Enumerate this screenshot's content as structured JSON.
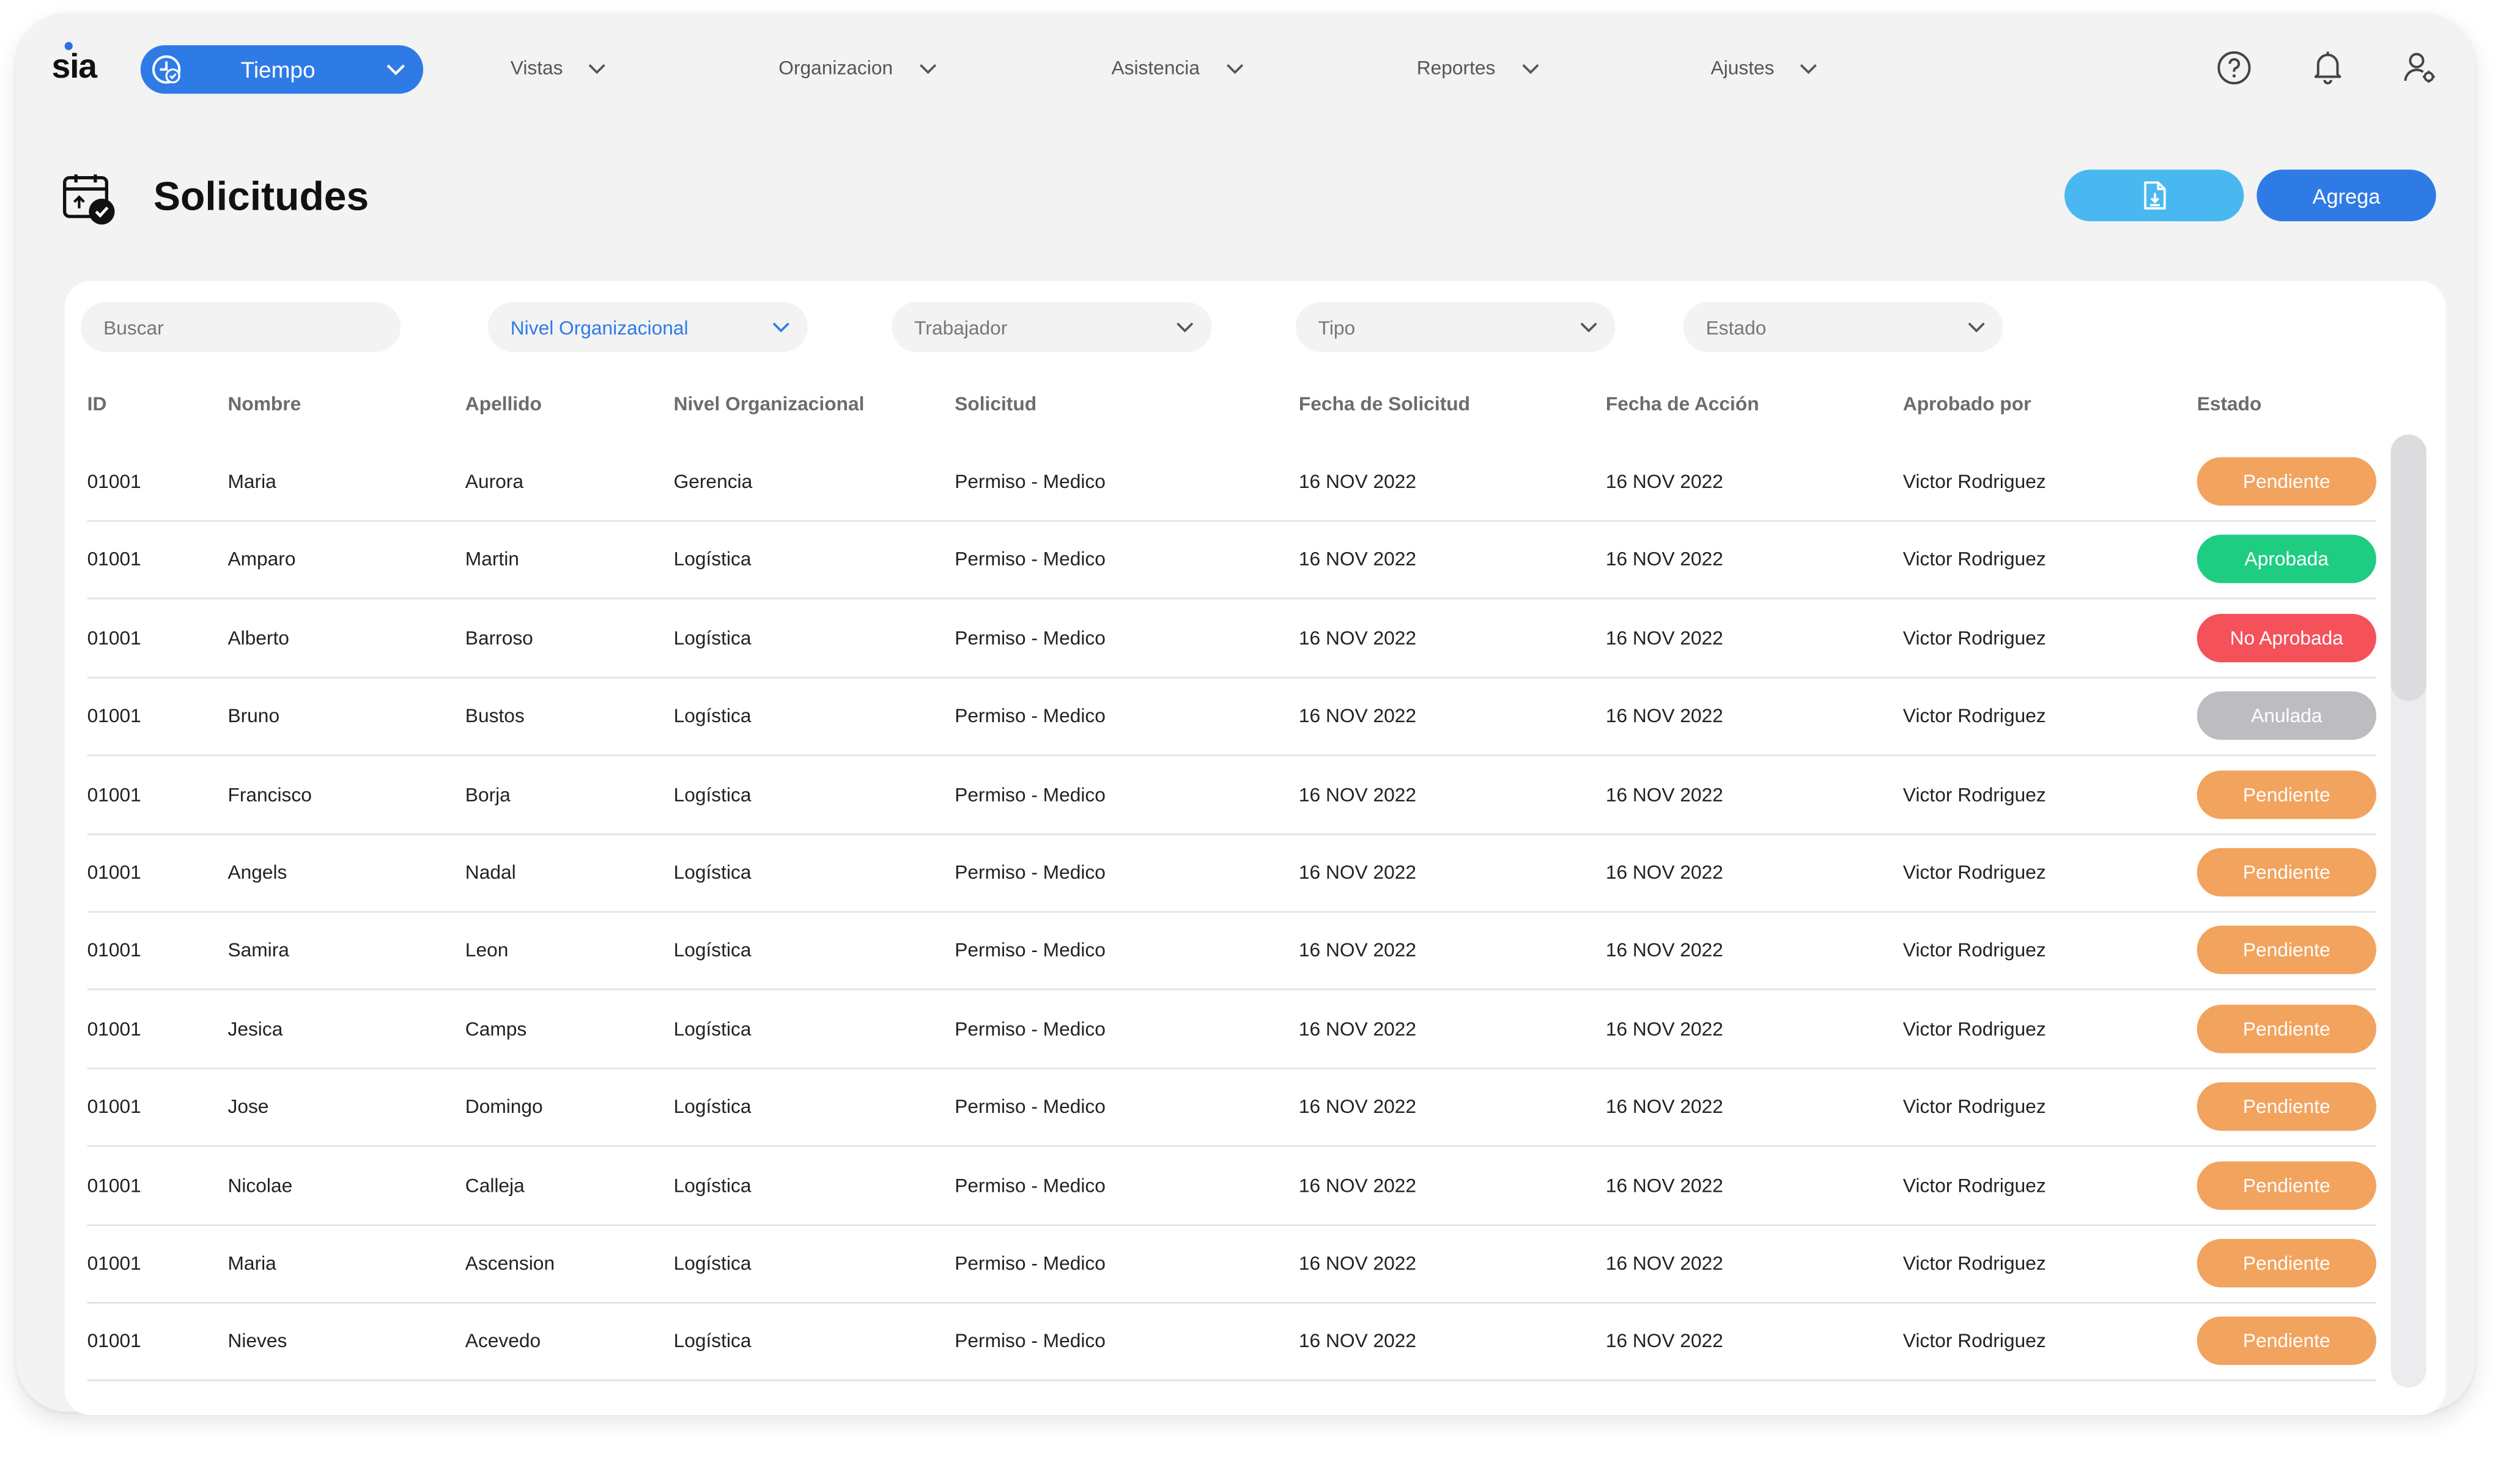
{
  "app": {
    "logo_text": "sia"
  },
  "nav": {
    "module_label": "Tiempo",
    "items": [
      {
        "label": "Vistas"
      },
      {
        "label": "Organizacion"
      },
      {
        "label": "Asistencia"
      },
      {
        "label": "Reportes"
      },
      {
        "label": "Ajustes"
      }
    ]
  },
  "icons": {
    "module": "clock-check-icon",
    "help": "help-circle-icon",
    "notifications": "bell-icon",
    "user": "user-settings-icon",
    "page": "calendar-check-icon",
    "export": "file-download-icon"
  },
  "page": {
    "title": "Solicitudes",
    "add_button": "Agrega"
  },
  "filters": {
    "search_placeholder": "Buscar",
    "nivel": "Nivel Organizacional",
    "trabajador": "Trabajador",
    "tipo": "Tipo",
    "estado": "Estado"
  },
  "table": {
    "columns": [
      "ID",
      "Nombre",
      "Apellido",
      "Nivel Organizacional",
      "Solicitud",
      "Fecha de Solicitud",
      "Fecha de Acción",
      "Aprobado por",
      "Estado"
    ],
    "rows": [
      {
        "id": "01001",
        "nombre": "Maria",
        "apellido": "Aurora",
        "nivel": "Gerencia",
        "solicitud": "Permiso - Medico",
        "fecha_solicitud": "16 NOV 2022",
        "fecha_accion": "16 NOV 2022",
        "aprobado_por": "Victor Rodriguez",
        "estado": "Pendiente"
      },
      {
        "id": "01001",
        "nombre": "Amparo",
        "apellido": "Martin",
        "nivel": "Logística",
        "solicitud": "Permiso - Medico",
        "fecha_solicitud": "16 NOV 2022",
        "fecha_accion": "16 NOV 2022",
        "aprobado_por": "Victor Rodriguez",
        "estado": "Aprobada"
      },
      {
        "id": "01001",
        "nombre": "Alberto",
        "apellido": "Barroso",
        "nivel": "Logística",
        "solicitud": "Permiso - Medico",
        "fecha_solicitud": "16 NOV 2022",
        "fecha_accion": "16 NOV 2022",
        "aprobado_por": "Victor Rodriguez",
        "estado": "No Aprobada"
      },
      {
        "id": "01001",
        "nombre": "Bruno",
        "apellido": "Bustos",
        "nivel": "Logística",
        "solicitud": "Permiso - Medico",
        "fecha_solicitud": "16 NOV 2022",
        "fecha_accion": "16 NOV 2022",
        "aprobado_por": "Victor Rodriguez",
        "estado": "Anulada"
      },
      {
        "id": "01001",
        "nombre": "Francisco",
        "apellido": "Borja",
        "nivel": "Logística",
        "solicitud": "Permiso - Medico",
        "fecha_solicitud": "16 NOV 2022",
        "fecha_accion": "16 NOV 2022",
        "aprobado_por": "Victor Rodriguez",
        "estado": "Pendiente"
      },
      {
        "id": "01001",
        "nombre": "Angels",
        "apellido": "Nadal",
        "nivel": "Logística",
        "solicitud": "Permiso - Medico",
        "fecha_solicitud": "16 NOV 2022",
        "fecha_accion": "16 NOV 2022",
        "aprobado_por": "Victor Rodriguez",
        "estado": "Pendiente"
      },
      {
        "id": "01001",
        "nombre": "Samira",
        "apellido": "Leon",
        "nivel": "Logística",
        "solicitud": "Permiso - Medico",
        "fecha_solicitud": "16 NOV 2022",
        "fecha_accion": "16 NOV 2022",
        "aprobado_por": "Victor Rodriguez",
        "estado": "Pendiente"
      },
      {
        "id": "01001",
        "nombre": "Jesica",
        "apellido": "Camps",
        "nivel": "Logística",
        "solicitud": "Permiso - Medico",
        "fecha_solicitud": "16 NOV 2022",
        "fecha_accion": "16 NOV 2022",
        "aprobado_por": "Victor Rodriguez",
        "estado": "Pendiente"
      },
      {
        "id": "01001",
        "nombre": "Jose",
        "apellido": "Domingo",
        "nivel": "Logística",
        "solicitud": "Permiso - Medico",
        "fecha_solicitud": "16 NOV 2022",
        "fecha_accion": "16 NOV 2022",
        "aprobado_por": "Victor Rodriguez",
        "estado": "Pendiente"
      },
      {
        "id": "01001",
        "nombre": "Nicolae",
        "apellido": "Calleja",
        "nivel": "Logística",
        "solicitud": "Permiso - Medico",
        "fecha_solicitud": "16 NOV 2022",
        "fecha_accion": "16 NOV 2022",
        "aprobado_por": "Victor Rodriguez",
        "estado": "Pendiente"
      },
      {
        "id": "01001",
        "nombre": "Maria",
        "apellido": "Ascension",
        "nivel": "Logística",
        "solicitud": "Permiso - Medico",
        "fecha_solicitud": "16 NOV 2022",
        "fecha_accion": "16 NOV 2022",
        "aprobado_por": "Victor Rodriguez",
        "estado": "Pendiente"
      },
      {
        "id": "01001",
        "nombre": "Nieves",
        "apellido": "Acevedo",
        "nivel": "Logística",
        "solicitud": "Permiso - Medico",
        "fecha_solicitud": "16 NOV 2022",
        "fecha_accion": "16 NOV 2022",
        "aprobado_por": "Victor Rodriguez",
        "estado": "Pendiente"
      }
    ]
  },
  "status_colors": {
    "Pendiente": "#f2a35e",
    "Aprobada": "#1fcd82",
    "No Aprobada": "#f5515a",
    "Anulada": "#bdbdc1"
  },
  "colors": {
    "accent": "#2f7be6",
    "export_button": "#4ab8f0"
  }
}
